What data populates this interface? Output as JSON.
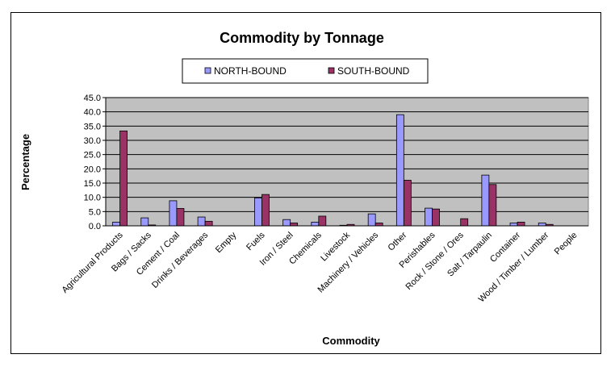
{
  "chart_data": {
    "type": "bar",
    "title": "Commodity by Tonnage",
    "xlabel": "Commodity",
    "ylabel": "Percentage",
    "ylim": [
      0,
      45
    ],
    "yticks": [
      "0.0",
      "5.0",
      "10.0",
      "15.0",
      "20.0",
      "25.0",
      "30.0",
      "35.0",
      "40.0",
      "45.0"
    ],
    "grid": true,
    "legend_position": "top",
    "plot_background": "#c0c0c0",
    "categories": [
      "Agricultural Products",
      "Bags / Sacks",
      "Cement / Coal",
      "Drinks / Beverages",
      "Empty",
      "Fuels",
      "Iron / Steel",
      "Chemicals",
      "Livestock",
      "Machinery / Vehicles",
      "Other",
      "Perishables",
      "Rock / Stone / Ores",
      "Salt / Tarpaulin",
      "Container",
      "Wood / Timber / Lumber",
      "People"
    ],
    "series": [
      {
        "name": "NORTH-BOUND",
        "color": "#9999ff",
        "values": [
          1.3,
          2.8,
          8.8,
          3.1,
          0,
          9.8,
          2.2,
          1.3,
          0.2,
          4.2,
          39.0,
          6.2,
          0,
          17.8,
          1.0,
          1.0,
          0
        ]
      },
      {
        "name": "SOUTH-BOUND",
        "color": "#993366",
        "values": [
          33.3,
          0.3,
          6.1,
          1.6,
          0,
          11.0,
          1.0,
          3.4,
          0.5,
          1.0,
          16.0,
          5.9,
          2.5,
          14.5,
          1.3,
          0.5,
          0
        ]
      }
    ]
  }
}
